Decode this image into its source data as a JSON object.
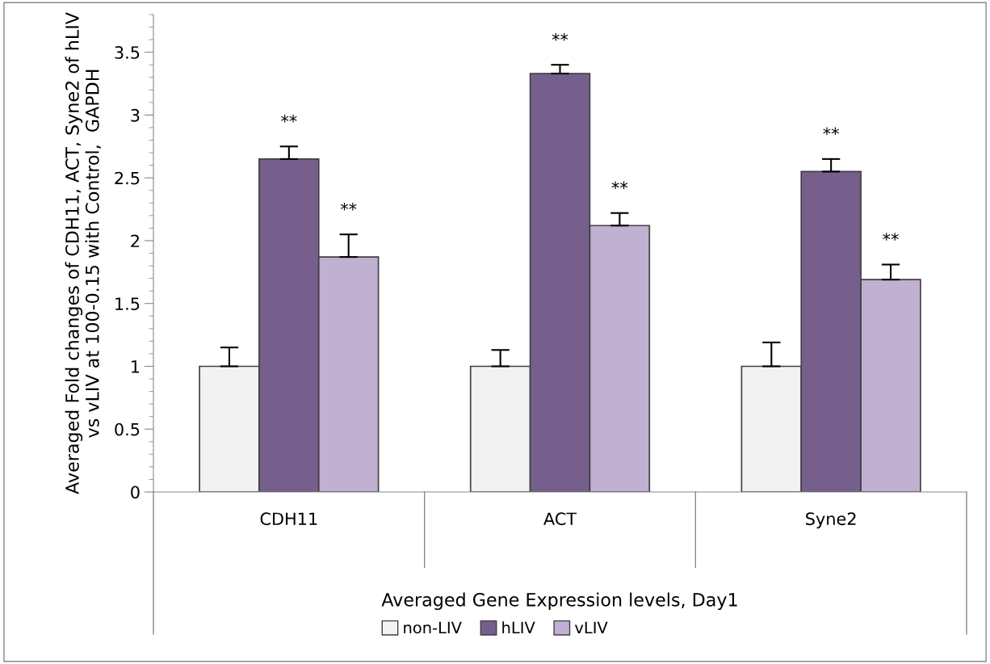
{
  "chart_data": {
    "type": "bar",
    "xlabel": "Averaged Gene Expression levels, Day1",
    "ylabel": "Averaged Fold changes of CDH11, ACT, Syne2 of hLIV vs vLIV at 100-0.15 with Control,  GAPDH",
    "categories": [
      "CDH11",
      "ACT",
      "Syne2"
    ],
    "series": [
      {
        "name": "non-LIV",
        "color": "#f2f2f2",
        "values": [
          1,
          1,
          1
        ],
        "errors": [
          0.15,
          0.13,
          0.19
        ]
      },
      {
        "name": "hLIV",
        "color": "#765f8d",
        "values": [
          2.65,
          3.33,
          2.55
        ],
        "errors": [
          0.1,
          0.07,
          0.1
        ],
        "value_labels": [
          "**",
          "**",
          "**"
        ]
      },
      {
        "name": "vLIV",
        "color": "#c0b0d2",
        "values": [
          1.87,
          2.12,
          1.69
        ],
        "errors": [
          0.18,
          0.1,
          0.12
        ],
        "value_labels": [
          "**",
          "**",
          "**"
        ]
      }
    ],
    "ylim": [
      0,
      3.8
    ],
    "yticks": [
      0,
      {
        "value": 0.5,
        "label": "0.5"
      },
      1,
      {
        "value": 1.5,
        "label": "1.5"
      },
      2,
      {
        "value": 2.5,
        "label": "2.5"
      },
      3,
      {
        "value": 3.5,
        "label": "3.5"
      }
    ],
    "grid": false,
    "legend": "bottom"
  }
}
